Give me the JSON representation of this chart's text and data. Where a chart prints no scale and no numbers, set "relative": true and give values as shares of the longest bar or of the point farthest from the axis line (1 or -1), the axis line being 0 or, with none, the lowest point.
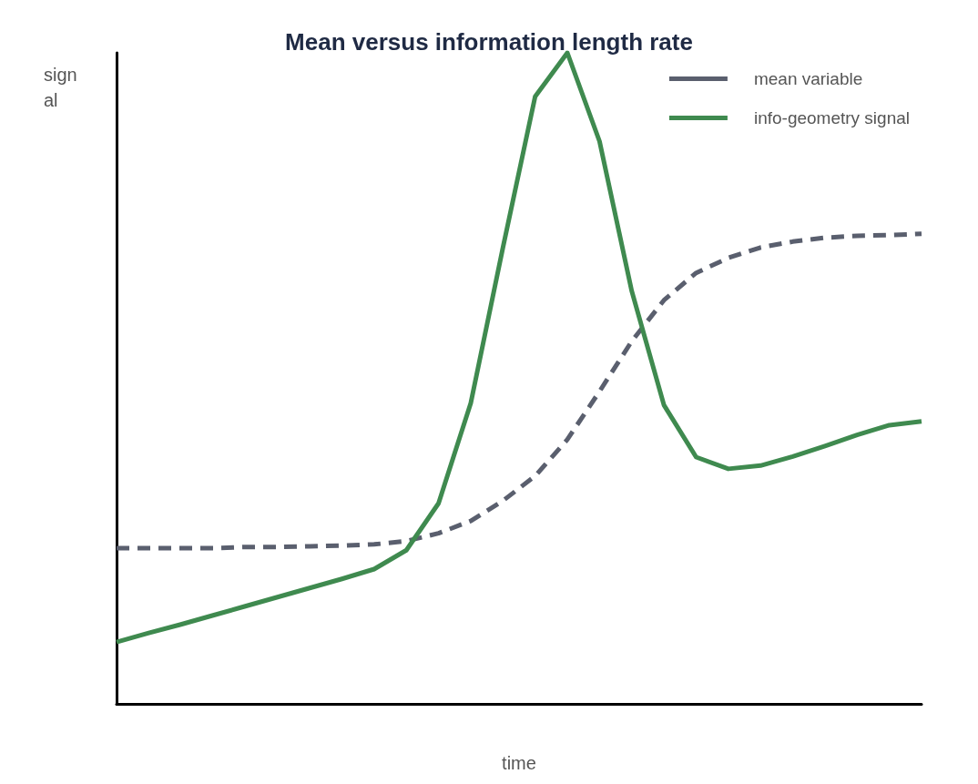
{
  "chart_data": {
    "type": "line",
    "title": "Mean versus information length rate",
    "xlabel": "time",
    "ylabel": "signal",
    "relative": true,
    "legend": "top right",
    "grid": false,
    "marker": "none",
    "categories": [
      null,
      null,
      null,
      null,
      null,
      null,
      null,
      null,
      null,
      null,
      null,
      null,
      null,
      null,
      null,
      null,
      null,
      null,
      null,
      null,
      null,
      null,
      null,
      null,
      null,
      null
    ],
    "series": [
      {
        "name": "mean variable",
        "color": "#5a5f6e",
        "line_style": "dashed",
        "values": [
          0.239,
          0.239,
          0.239,
          0.239,
          0.241,
          0.241,
          0.242,
          0.243,
          0.245,
          0.25,
          0.262,
          0.281,
          0.312,
          0.35,
          0.406,
          0.48,
          0.557,
          0.62,
          0.662,
          0.685,
          0.701,
          0.71,
          0.716,
          0.719,
          0.72,
          0.722
        ]
      },
      {
        "name": "info-geometry signal",
        "color": "#3f8a4f",
        "line_style": "solid",
        "values": [
          0.095,
          0.109,
          0.122,
          0.136,
          0.15,
          0.164,
          0.178,
          0.192,
          0.207,
          0.236,
          0.308,
          0.462,
          0.701,
          0.933,
          1,
          0.864,
          0.634,
          0.459,
          0.379,
          0.361,
          0.366,
          0.38,
          0.396,
          0.413,
          0.428,
          0.434
        ]
      }
    ]
  }
}
